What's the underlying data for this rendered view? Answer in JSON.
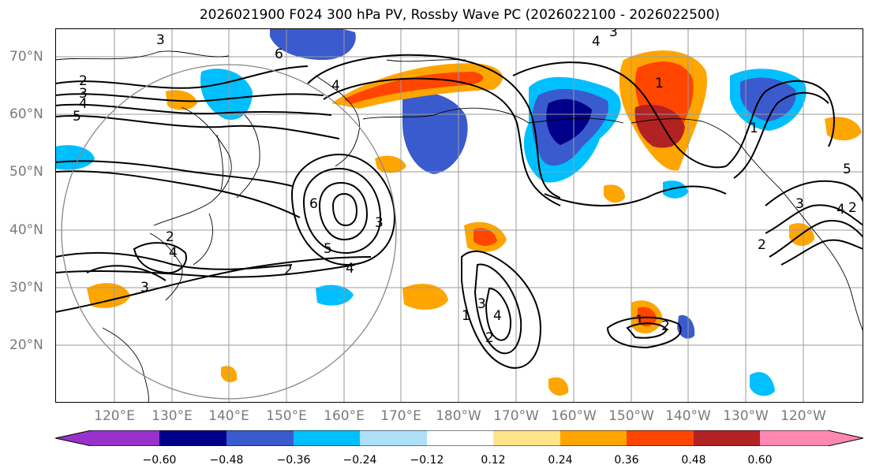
{
  "title": "2026021900 F024 300 hPa PV, Rossby Wave PC (2026022100 - 2026022500)",
  "axes": {
    "lat_labels": [
      "70°N",
      "60°N",
      "50°N",
      "40°N",
      "30°N",
      "20°N"
    ],
    "lon_labels": [
      "120°E",
      "130°E",
      "140°E",
      "150°E",
      "160°E",
      "170°E",
      "180°W",
      "170°W",
      "160°W",
      "150°W",
      "140°W",
      "130°W",
      "120°W"
    ]
  },
  "colorbar": {
    "ticks": [
      "−0.60",
      "−0.48",
      "−0.36",
      "−0.24",
      "−0.12",
      "0.12",
      "0.24",
      "0.36",
      "0.48",
      "0.60"
    ],
    "colors": [
      "#9932CC",
      "#00008B",
      "#3A5BCD",
      "#00BFFF",
      "#AEE0FA",
      "#FFFFFF",
      "#FFE58A",
      "#FFA500",
      "#FF4500",
      "#B22222",
      "#FF88B0"
    ]
  },
  "contour_labels": [
    "2",
    "3",
    "4",
    "5",
    "6",
    "4",
    "3",
    "4",
    "3",
    "1",
    "2",
    "3",
    "4",
    "5",
    "3",
    "2",
    "4",
    "6",
    "1",
    "3",
    "2",
    "4",
    "1",
    "2",
    "2",
    "3",
    "4",
    "5",
    "2",
    "1"
  ],
  "colors": {
    "grid": "#9a9a9a",
    "coast": "#000000",
    "contour": "#000000",
    "ring": "#888888"
  }
}
